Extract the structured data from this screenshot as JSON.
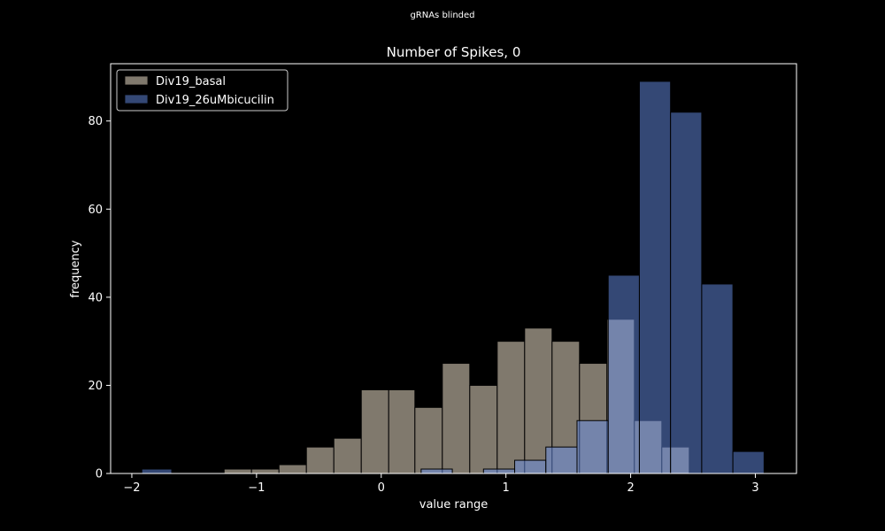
{
  "chart_data": {
    "type": "bar",
    "suptitle": "gRNAs blinded",
    "title": "Number of Spikes, 0",
    "xlabel": "value range",
    "ylabel": "frequency",
    "xlim": [
      -2.17,
      3.33
    ],
    "ylim": [
      0,
      93
    ],
    "xticks": [
      -2,
      -1,
      0,
      1,
      2,
      3
    ],
    "yticks": [
      0,
      20,
      40,
      60,
      80
    ],
    "legend_position": "top-left",
    "grid": false,
    "series": [
      {
        "name": "Div19_basal",
        "color": "#fff1d9",
        "opacity": 0.5,
        "bins": [
          {
            "x0": -1.26,
            "x1": -1.04,
            "count": 1
          },
          {
            "x0": -1.04,
            "x1": -0.82,
            "count": 1
          },
          {
            "x0": -0.82,
            "x1": -0.6,
            "count": 2
          },
          {
            "x0": -0.6,
            "x1": -0.38,
            "count": 6
          },
          {
            "x0": -0.38,
            "x1": -0.16,
            "count": 8
          },
          {
            "x0": -0.16,
            "x1": 0.06,
            "count": 19
          },
          {
            "x0": 0.06,
            "x1": 0.27,
            "count": 19
          },
          {
            "x0": 0.27,
            "x1": 0.49,
            "count": 15
          },
          {
            "x0": 0.49,
            "x1": 0.71,
            "count": 25
          },
          {
            "x0": 0.71,
            "x1": 0.93,
            "count": 20
          },
          {
            "x0": 0.93,
            "x1": 1.15,
            "count": 30
          },
          {
            "x0": 1.15,
            "x1": 1.37,
            "count": 33
          },
          {
            "x0": 1.37,
            "x1": 1.59,
            "count": 30
          },
          {
            "x0": 1.59,
            "x1": 1.81,
            "count": 25
          },
          {
            "x0": 1.81,
            "x1": 2.03,
            "count": 35
          },
          {
            "x0": 2.03,
            "x1": 2.25,
            "count": 12
          },
          {
            "x0": 2.25,
            "x1": 2.47,
            "count": 6
          }
        ]
      },
      {
        "name": "Div19_26uMbicucilin",
        "color": "#6890e9",
        "opacity": 0.5,
        "bins": [
          {
            "x0": -1.92,
            "x1": -1.68,
            "count": 1
          },
          {
            "x0": 0.32,
            "x1": 0.57,
            "count": 1
          },
          {
            "x0": 0.82,
            "x1": 1.07,
            "count": 1
          },
          {
            "x0": 1.07,
            "x1": 1.32,
            "count": 3
          },
          {
            "x0": 1.32,
            "x1": 1.57,
            "count": 6
          },
          {
            "x0": 1.57,
            "x1": 1.82,
            "count": 12
          },
          {
            "x0": 1.82,
            "x1": 2.07,
            "count": 45
          },
          {
            "x0": 2.07,
            "x1": 2.32,
            "count": 89
          },
          {
            "x0": 2.32,
            "x1": 2.57,
            "count": 82
          },
          {
            "x0": 2.57,
            "x1": 2.82,
            "count": 43
          },
          {
            "x0": 2.82,
            "x1": 3.07,
            "count": 5
          }
        ]
      }
    ]
  }
}
